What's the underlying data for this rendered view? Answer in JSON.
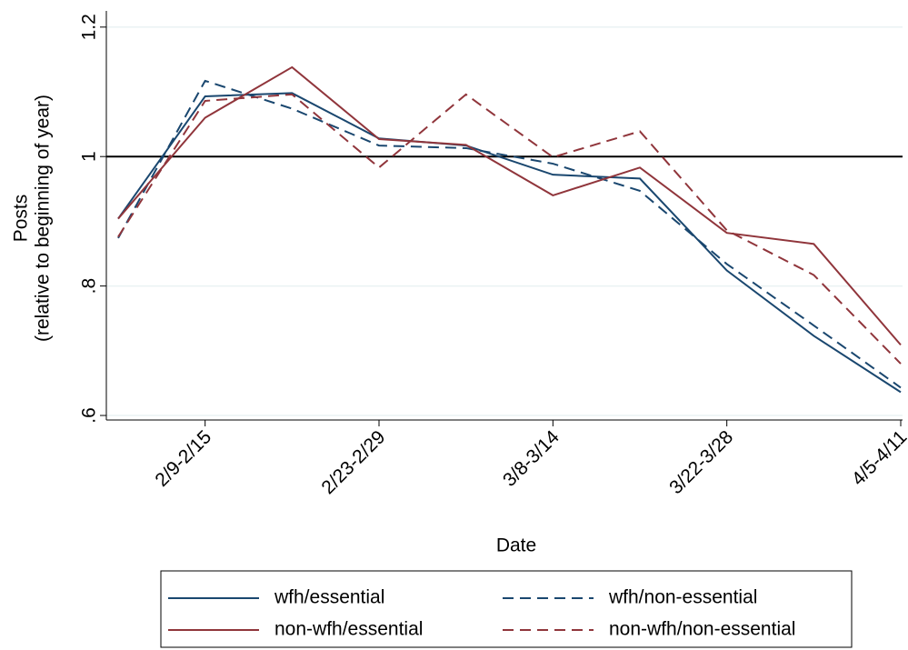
{
  "chart_data": {
    "type": "line",
    "x_label": "Date",
    "y_label": [
      "Posts",
      "(relative to beginning of year)"
    ],
    "categories": [
      null,
      "2/9-2/15",
      null,
      "2/23-2/29",
      null,
      "3/8-3/14",
      null,
      "3/22-3/28",
      null,
      "4/5-4/11"
    ],
    "series": [
      {
        "name": "wfh/essential",
        "color": "#1a476f",
        "dash": false,
        "values": [
          0.904,
          1.093,
          1.098,
          1.028,
          1.017,
          0.972,
          0.966,
          0.824,
          0.723,
          0.636
        ]
      },
      {
        "name": "wfh/non-essential",
        "color": "#1a476f",
        "dash": true,
        "values": [
          0.874,
          1.117,
          1.074,
          1.017,
          1.013,
          0.989,
          0.947,
          0.834,
          0.739,
          0.643
        ]
      },
      {
        "name": "non-wfh/essential",
        "color": "#90353b",
        "dash": false,
        "values": [
          0.904,
          1.06,
          1.138,
          1.027,
          1.018,
          0.94,
          0.983,
          0.882,
          0.865,
          0.709
        ]
      },
      {
        "name": "non-wfh/non-essential",
        "color": "#90353b",
        "dash": true,
        "values": [
          0.876,
          1.086,
          1.096,
          0.983,
          1.096,
          0.999,
          1.039,
          0.886,
          0.817,
          0.68
        ]
      }
    ],
    "ylim": [
      0.593,
      1.225
    ],
    "yticks": [
      {
        "value": 0.6,
        "label": ".6"
      },
      {
        "value": 0.8,
        "label": ".8"
      },
      1,
      1.2
    ],
    "refline": 1,
    "grid": true,
    "legend": "bottom"
  }
}
